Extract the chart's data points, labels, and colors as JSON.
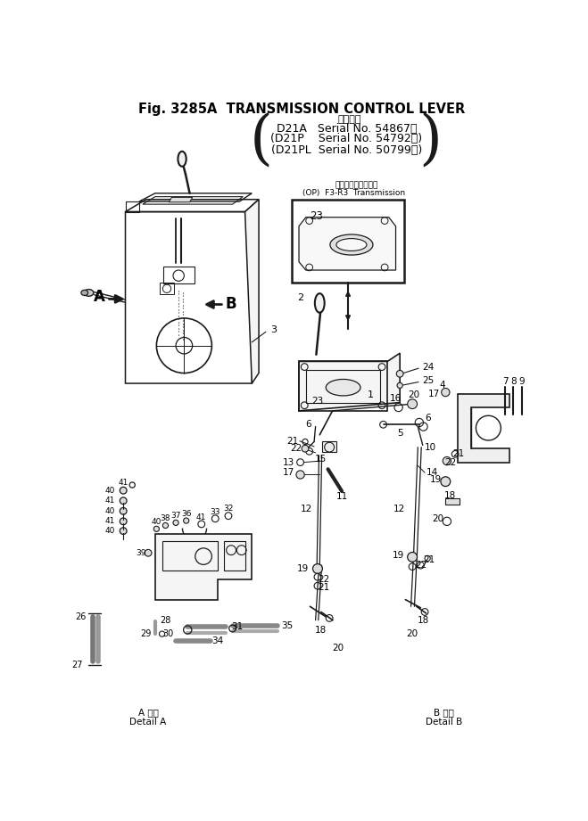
{
  "bg_color": "#ffffff",
  "lc": "#1a1a1a",
  "title1": "Fig. 3285A  TRANSMISSION CONTROL LEVER",
  "title2": "適用号機",
  "title3": "D21A   Serial No. 54867～",
  "title4": "(D21P    Serial No. 54792～)",
  "title5": "(D21PL  Serial No. 50799～)",
  "op1": "トランスミッション",
  "op2": "(OP)  F3-R3  Transmission",
  "detailA": "A 詳細\nDetail A",
  "detailB": "B 詳細\nDetail B"
}
